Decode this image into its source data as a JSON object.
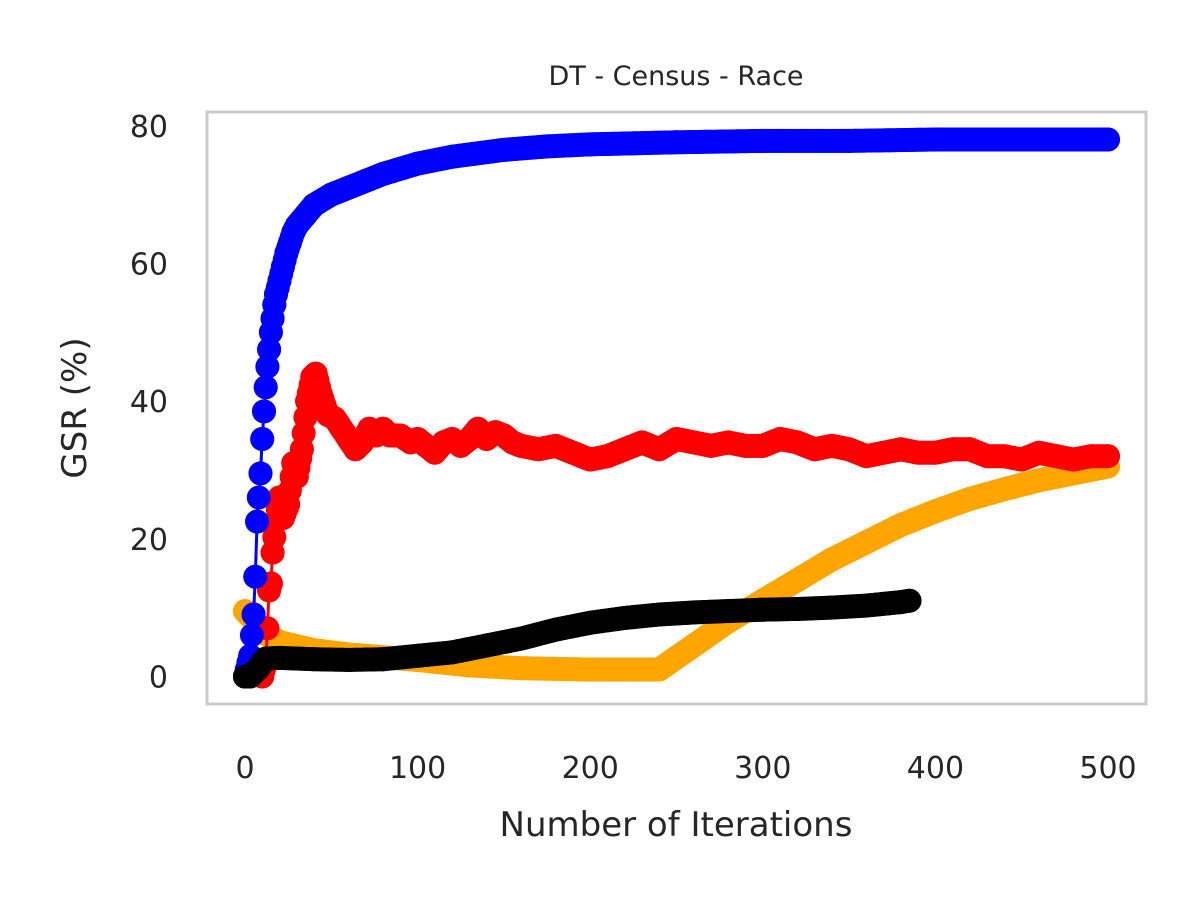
{
  "chart_data": {
    "type": "line",
    "title": "DT - Census - Race",
    "xlabel": "Number of Iterations",
    "ylabel": "GSR (%)",
    "xlim": [
      -22,
      522
    ],
    "ylim": [
      -4,
      82
    ],
    "x_ticks": [
      0,
      100,
      200,
      300,
      400,
      500
    ],
    "x_tick_labels": [
      "0",
      "100",
      "200",
      "300",
      "400",
      "500"
    ],
    "y_ticks": [
      0,
      20,
      40,
      60,
      80
    ],
    "y_tick_labels": [
      "0",
      "20",
      "40",
      "60",
      "80"
    ],
    "grid": false,
    "legend": "none",
    "series": [
      {
        "color": "#ffa500",
        "points": [
          [
            0,
            9.5
          ],
          [
            5,
            8.2
          ],
          [
            10,
            6.5
          ],
          [
            20,
            5.0
          ],
          [
            40,
            3.8
          ],
          [
            60,
            3.2
          ],
          [
            80,
            2.8
          ],
          [
            100,
            2.4
          ],
          [
            130,
            1.6
          ],
          [
            160,
            1.2
          ],
          [
            200,
            1.0
          ],
          [
            240,
            1.0
          ],
          [
            260,
            4.5
          ],
          [
            280,
            8.0
          ],
          [
            300,
            11.0
          ],
          [
            320,
            14.0
          ],
          [
            340,
            17.0
          ],
          [
            360,
            19.5
          ],
          [
            380,
            22.0
          ],
          [
            400,
            24.0
          ],
          [
            420,
            25.8
          ],
          [
            440,
            27.2
          ],
          [
            460,
            28.5
          ],
          [
            480,
            29.5
          ],
          [
            500,
            30.5
          ]
        ]
      },
      {
        "color": "#ff0000",
        "points": [
          [
            10,
            0
          ],
          [
            12,
            2
          ],
          [
            13,
            7
          ],
          [
            14,
            12.5
          ],
          [
            15,
            13.5
          ],
          [
            16,
            18
          ],
          [
            18,
            22.5
          ],
          [
            20,
            26
          ],
          [
            22,
            23
          ],
          [
            25,
            25
          ],
          [
            28,
            31
          ],
          [
            30,
            29
          ],
          [
            33,
            33
          ],
          [
            36,
            40
          ],
          [
            39,
            43.5
          ],
          [
            41,
            44
          ],
          [
            44,
            41
          ],
          [
            48,
            38
          ],
          [
            52,
            37.5
          ],
          [
            56,
            36
          ],
          [
            60,
            34.5
          ],
          [
            64,
            33
          ],
          [
            68,
            34
          ],
          [
            72,
            36
          ],
          [
            76,
            35
          ],
          [
            80,
            36
          ],
          [
            84,
            35
          ],
          [
            90,
            35
          ],
          [
            96,
            34
          ],
          [
            100,
            34.5
          ],
          [
            105,
            33.5
          ],
          [
            110,
            32.5
          ],
          [
            115,
            34
          ],
          [
            120,
            34.5
          ],
          [
            125,
            33.5
          ],
          [
            130,
            34.5
          ],
          [
            135,
            36
          ],
          [
            140,
            34.5
          ],
          [
            145,
            35.5
          ],
          [
            150,
            35
          ],
          [
            155,
            34
          ],
          [
            160,
            33.5
          ],
          [
            170,
            33
          ],
          [
            180,
            33.5
          ],
          [
            190,
            32.5
          ],
          [
            200,
            31.5
          ],
          [
            210,
            32
          ],
          [
            220,
            33
          ],
          [
            230,
            34
          ],
          [
            240,
            33
          ],
          [
            250,
            34.5
          ],
          [
            260,
            34
          ],
          [
            270,
            33.5
          ],
          [
            280,
            34
          ],
          [
            290,
            33.5
          ],
          [
            300,
            33.5
          ],
          [
            310,
            34.5
          ],
          [
            320,
            34
          ],
          [
            330,
            33
          ],
          [
            340,
            33.5
          ],
          [
            350,
            33
          ],
          [
            360,
            32
          ],
          [
            370,
            32.5
          ],
          [
            380,
            33
          ],
          [
            390,
            32.5
          ],
          [
            400,
            32.5
          ],
          [
            410,
            33
          ],
          [
            420,
            33
          ],
          [
            430,
            32
          ],
          [
            440,
            32
          ],
          [
            450,
            31.5
          ],
          [
            460,
            32.5
          ],
          [
            470,
            32
          ],
          [
            480,
            31.5
          ],
          [
            490,
            32
          ],
          [
            500,
            32
          ]
        ]
      },
      {
        "color": "#0000ff",
        "points": [
          [
            0,
            0
          ],
          [
            3,
            3
          ],
          [
            5,
            9
          ],
          [
            6,
            14.5
          ],
          [
            7,
            22.5
          ],
          [
            9,
            29.5
          ],
          [
            10,
            34.5
          ],
          [
            11,
            38.5
          ],
          [
            12,
            42
          ],
          [
            13,
            45
          ],
          [
            14,
            47.5
          ],
          [
            15,
            50
          ],
          [
            16,
            52
          ],
          [
            17,
            54
          ],
          [
            18,
            55.5
          ],
          [
            20,
            57.5
          ],
          [
            22,
            59.5
          ],
          [
            24,
            61.5
          ],
          [
            26,
            63
          ],
          [
            28,
            64.5
          ],
          [
            30,
            65.5
          ],
          [
            35,
            67
          ],
          [
            40,
            68.5
          ],
          [
            50,
            70
          ],
          [
            60,
            71
          ],
          [
            70,
            72
          ],
          [
            80,
            73
          ],
          [
            100,
            74.5
          ],
          [
            120,
            75.5
          ],
          [
            150,
            76.5
          ],
          [
            175,
            77
          ],
          [
            200,
            77.3
          ],
          [
            250,
            77.6
          ],
          [
            300,
            77.8
          ],
          [
            350,
            77.8
          ],
          [
            400,
            78
          ],
          [
            450,
            78
          ],
          [
            500,
            78
          ]
        ]
      },
      {
        "color": "#000000",
        "points": [
          [
            0,
            0
          ],
          [
            3,
            0
          ],
          [
            5,
            0.5
          ],
          [
            8,
            1.2
          ],
          [
            10,
            2
          ],
          [
            12,
            2.6
          ],
          [
            20,
            2.7
          ],
          [
            40,
            2.5
          ],
          [
            60,
            2.4
          ],
          [
            80,
            2.5
          ],
          [
            100,
            3
          ],
          [
            120,
            3.5
          ],
          [
            140,
            4.5
          ],
          [
            160,
            5.5
          ],
          [
            180,
            6.8
          ],
          [
            200,
            7.8
          ],
          [
            220,
            8.5
          ],
          [
            240,
            9
          ],
          [
            260,
            9.3
          ],
          [
            280,
            9.5
          ],
          [
            300,
            9.7
          ],
          [
            320,
            9.8
          ],
          [
            340,
            10
          ],
          [
            360,
            10.3
          ],
          [
            380,
            10.8
          ],
          [
            385,
            11
          ]
        ]
      }
    ]
  }
}
